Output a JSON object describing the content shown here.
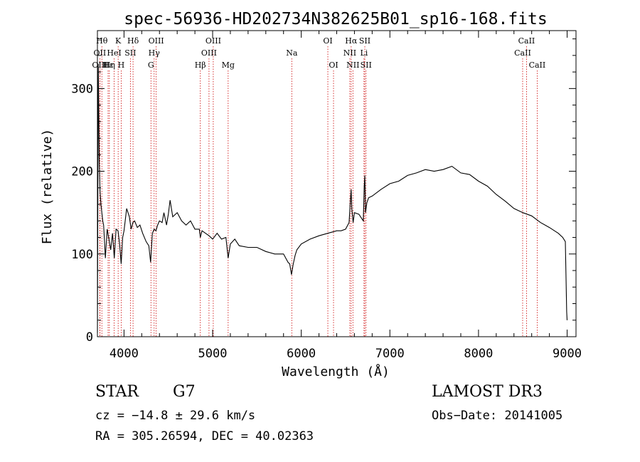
{
  "chart_data": {
    "type": "line",
    "title": "spec-56936-HD202734N382625B01_sp16-168.fits",
    "xlabel": "Wavelength (Å)",
    "ylabel": "Flux (relative)",
    "xlim": [
      3700,
      9100
    ],
    "ylim": [
      0,
      370
    ],
    "xticks": [
      4000,
      5000,
      6000,
      7000,
      8000,
      9000
    ],
    "yticks": [
      0,
      100,
      200,
      300
    ],
    "series": [
      {
        "name": "spectrum",
        "x": [
          3700,
          3710,
          3720,
          3730,
          3740,
          3750,
          3760,
          3770,
          3790,
          3810,
          3830,
          3850,
          3870,
          3890,
          3910,
          3933,
          3950,
          3968,
          3985,
          4000,
          4030,
          4060,
          4080,
          4100,
          4120,
          4150,
          4180,
          4210,
          4250,
          4280,
          4300,
          4320,
          4340,
          4360,
          4380,
          4400,
          4430,
          4450,
          4480,
          4500,
          4520,
          4550,
          4600,
          4650,
          4700,
          4750,
          4800,
          4850,
          4861,
          4880,
          4920,
          4960,
          5000,
          5050,
          5100,
          5150,
          5175,
          5200,
          5250,
          5300,
          5400,
          5500,
          5600,
          5700,
          5800,
          5850,
          5870,
          5890,
          5910,
          5930,
          5950,
          6000,
          6100,
          6200,
          6300,
          6400,
          6450,
          6500,
          6540,
          6555,
          6563,
          6570,
          6585,
          6600,
          6650,
          6700,
          6710,
          6717,
          6725,
          6740,
          6760,
          6800,
          6900,
          7000,
          7100,
          7200,
          7300,
          7400,
          7500,
          7600,
          7700,
          7800,
          7900,
          8000,
          8100,
          8200,
          8300,
          8400,
          8500,
          8600,
          8700,
          8800,
          8900,
          8950,
          8980,
          8995,
          9000
        ],
        "values": [
          5,
          330,
          215,
          175,
          160,
          150,
          140,
          135,
          95,
          130,
          118,
          105,
          125,
          95,
          130,
          128,
          112,
          88,
          120,
          128,
          155,
          145,
          130,
          138,
          140,
          132,
          135,
          125,
          115,
          110,
          90,
          125,
          130,
          128,
          135,
          140,
          138,
          150,
          135,
          148,
          165,
          145,
          150,
          140,
          135,
          140,
          130,
          130,
          120,
          128,
          125,
          122,
          118,
          125,
          118,
          120,
          95,
          112,
          118,
          110,
          108,
          108,
          103,
          100,
          100,
          90,
          88,
          75,
          88,
          98,
          105,
          112,
          118,
          122,
          125,
          128,
          128,
          130,
          138,
          165,
          178,
          155,
          138,
          150,
          148,
          140,
          180,
          195,
          150,
          162,
          168,
          170,
          178,
          185,
          188,
          195,
          198,
          202,
          200,
          202,
          206,
          198,
          196,
          188,
          182,
          172,
          164,
          155,
          150,
          146,
          138,
          132,
          125,
          120,
          115,
          30,
          20
        ]
      }
    ],
    "line_markers": [
      {
        "label": "Hθ",
        "wavelength": 3750,
        "row": 0
      },
      {
        "label": "OII",
        "wavelength": 3727,
        "row": 1
      },
      {
        "label": "OIII",
        "wavelength": 3727,
        "row": 2
      },
      {
        "label": "Hε",
        "wavelength": 3820,
        "row": 2
      },
      {
        "label": "Hη",
        "wavelength": 3835,
        "row": 2
      },
      {
        "label": "HeI",
        "wavelength": 3889,
        "row": 1
      },
      {
        "label": "K",
        "wavelength": 3934,
        "row": 0
      },
      {
        "label": "SII",
        "wavelength": 4072,
        "row": 1
      },
      {
        "label": "H",
        "wavelength": 3968,
        "row": 2
      },
      {
        "label": "Hδ",
        "wavelength": 4102,
        "row": 0
      },
      {
        "label": "OIII",
        "wavelength": 4363,
        "row": 0
      },
      {
        "label": "Hγ",
        "wavelength": 4340,
        "row": 1
      },
      {
        "label": "G",
        "wavelength": 4304,
        "row": 2
      },
      {
        "label": "OIII",
        "wavelength": 5007,
        "row": 0
      },
      {
        "label": "OIII",
        "wavelength": 4959,
        "row": 1
      },
      {
        "label": "Hβ",
        "wavelength": 4861,
        "row": 2
      },
      {
        "label": "Mg",
        "wavelength": 5175,
        "row": 2
      },
      {
        "label": "Na",
        "wavelength": 5893,
        "row": 1
      },
      {
        "label": "OI",
        "wavelength": 6300,
        "row": 0
      },
      {
        "label": "OI",
        "wavelength": 6364,
        "row": 2
      },
      {
        "label": "Hα",
        "wavelength": 6563,
        "row": 0
      },
      {
        "label": "NII",
        "wavelength": 6548,
        "row": 1
      },
      {
        "label": "NII",
        "wavelength": 6583,
        "row": 2
      },
      {
        "label": "SII",
        "wavelength": 6717,
        "row": 0
      },
      {
        "label": "Li",
        "wavelength": 6708,
        "row": 1
      },
      {
        "label": "SII",
        "wavelength": 6731,
        "row": 2
      },
      {
        "label": "CaII",
        "wavelength": 8542,
        "row": 0
      },
      {
        "label": "CaII",
        "wavelength": 8498,
        "row": 1
      },
      {
        "label": "CaII",
        "wavelength": 8662,
        "row": 2
      }
    ],
    "line_marker_color": "#cc0000"
  },
  "info": {
    "class": "STAR",
    "subclass": "G7",
    "survey": "LAMOST DR3",
    "cz": "cz = −14.8 ± 29.6 km/s",
    "obs_date": "Obs−Date: 20141005",
    "radec": "RA = 305.26594, DEC =  40.02363"
  }
}
